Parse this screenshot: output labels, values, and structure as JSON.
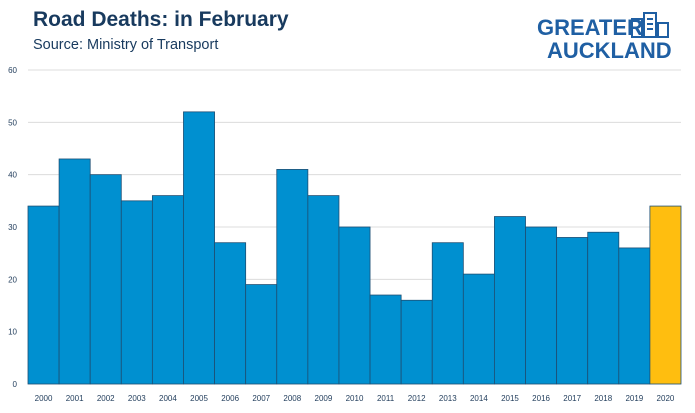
{
  "header": {
    "title": "Road Deaths: in February",
    "subtitle": "Source: Ministry of Transport"
  },
  "logo": {
    "line1": "GREATER",
    "line2": "AUCKLAND",
    "text_color": "#1f5fa3",
    "icon": "city-buildings-icon"
  },
  "chart_data": {
    "type": "bar",
    "title": "Road Deaths: in February",
    "subtitle": "Source: Ministry of Transport",
    "categories": [
      "2000",
      "2001",
      "2002",
      "2003",
      "2004",
      "2005",
      "2006",
      "2007",
      "2008",
      "2009",
      "2010",
      "2011",
      "2012",
      "2013",
      "2014",
      "2015",
      "2016",
      "2017",
      "2018",
      "2019",
      "2020"
    ],
    "values": [
      34,
      43,
      40,
      35,
      36,
      52,
      27,
      19,
      41,
      36,
      30,
      17,
      16,
      27,
      21,
      32,
      30,
      28,
      29,
      26,
      34
    ],
    "ylim": [
      0,
      60
    ],
    "yticks": [
      0,
      10,
      20,
      30,
      40,
      50,
      60
    ],
    "xlabel": "",
    "ylabel": "",
    "grid": true,
    "colors": {
      "bar": "#0090d0",
      "highlight": "#ffbe0f",
      "bar_edge": "#1d4f74",
      "grid": "#dcdcdc"
    },
    "highlight_category": "2020"
  }
}
